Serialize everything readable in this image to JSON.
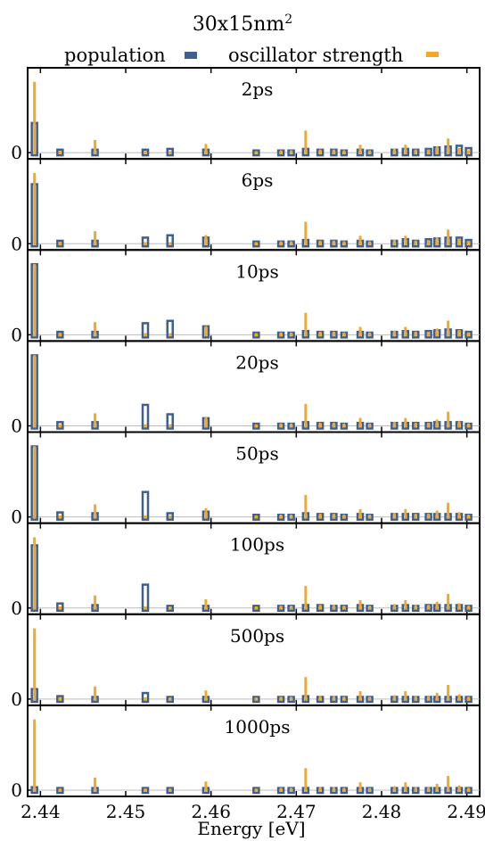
{
  "chart_data": {
    "type": "bar",
    "title": "30x15nm",
    "title_superscript": "2",
    "xlabel": "Energy [eV]",
    "xlim": [
      2.4385,
      2.4915
    ],
    "xticks": [
      {
        "value": 2.44,
        "label": "2.44"
      },
      {
        "value": 2.45,
        "label": "2.45"
      },
      {
        "value": 2.46,
        "label": "2.46"
      },
      {
        "value": 2.47,
        "label": "2.47"
      },
      {
        "value": 2.48,
        "label": "2.48"
      },
      {
        "value": 2.49,
        "label": "2.49"
      }
    ],
    "ytick_label": "0",
    "ylim": [
      0,
      1
    ],
    "legend": {
      "placement": "top",
      "entries": [
        {
          "name": "population",
          "color": "#3f5f8f"
        },
        {
          "name": "oscillator strength",
          "color": "#f7a823"
        }
      ]
    },
    "colors": {
      "population": "#3f5f8f",
      "oscillator": "#f7a823",
      "baseline": "#bbbbbb"
    },
    "energies": [
      2.4393,
      2.4423,
      2.4464,
      2.4523,
      2.4552,
      2.4594,
      2.4653,
      2.4682,
      2.4694,
      2.4711,
      2.4728,
      2.4744,
      2.4756,
      2.4775,
      2.4786,
      2.4815,
      2.4828,
      2.484,
      2.4855,
      2.4865,
      2.4878,
      2.4891,
      2.4902
    ],
    "oscillator_strength": [
      0.9,
      0.02,
      0.16,
      0.02,
      0.02,
      0.11,
      0.02,
      0.03,
      0.03,
      0.28,
      0.04,
      0.04,
      0.03,
      0.1,
      0.03,
      0.05,
      0.1,
      0.04,
      0.04,
      0.08,
      0.18,
      0.06,
      0.03
    ],
    "panels": [
      {
        "label": "2ps",
        "population": [
          0.4,
          0.06,
          0.06,
          0.06,
          0.07,
          0.06,
          0.05,
          0.05,
          0.05,
          0.07,
          0.06,
          0.06,
          0.05,
          0.06,
          0.05,
          0.06,
          0.07,
          0.06,
          0.07,
          0.09,
          0.1,
          0.11,
          0.08
        ]
      },
      {
        "label": "6ps",
        "population": [
          0.78,
          0.06,
          0.06,
          0.1,
          0.13,
          0.1,
          0.05,
          0.05,
          0.05,
          0.07,
          0.06,
          0.06,
          0.05,
          0.06,
          0.05,
          0.06,
          0.08,
          0.06,
          0.08,
          0.09,
          0.1,
          0.1,
          0.07
        ]
      },
      {
        "label": "10ps",
        "population": [
          0.92,
          0.06,
          0.06,
          0.17,
          0.2,
          0.13,
          0.05,
          0.05,
          0.05,
          0.07,
          0.06,
          0.06,
          0.05,
          0.06,
          0.05,
          0.06,
          0.07,
          0.06,
          0.07,
          0.08,
          0.09,
          0.08,
          0.06
        ]
      },
      {
        "label": "20ps",
        "population": [
          0.92,
          0.07,
          0.07,
          0.29,
          0.17,
          0.12,
          0.05,
          0.05,
          0.05,
          0.07,
          0.06,
          0.06,
          0.05,
          0.06,
          0.05,
          0.06,
          0.06,
          0.06,
          0.06,
          0.07,
          0.07,
          0.07,
          0.05
        ]
      },
      {
        "label": "50ps",
        "population": [
          0.92,
          0.08,
          0.07,
          0.34,
          0.07,
          0.09,
          0.05,
          0.05,
          0.05,
          0.07,
          0.06,
          0.06,
          0.05,
          0.06,
          0.05,
          0.06,
          0.06,
          0.06,
          0.06,
          0.06,
          0.06,
          0.06,
          0.05
        ]
      },
      {
        "label": "100ps",
        "population": [
          0.82,
          0.08,
          0.06,
          0.32,
          0.05,
          0.05,
          0.05,
          0.05,
          0.05,
          0.06,
          0.06,
          0.05,
          0.05,
          0.06,
          0.05,
          0.05,
          0.06,
          0.05,
          0.06,
          0.06,
          0.06,
          0.06,
          0.05
        ]
      },
      {
        "label": "500ps",
        "population": [
          0.15,
          0.06,
          0.05,
          0.1,
          0.05,
          0.05,
          0.05,
          0.05,
          0.05,
          0.06,
          0.05,
          0.05,
          0.05,
          0.05,
          0.05,
          0.05,
          0.05,
          0.05,
          0.05,
          0.05,
          0.05,
          0.05,
          0.05
        ]
      },
      {
        "label": "1000ps",
        "population": [
          0.06,
          0.05,
          0.05,
          0.05,
          0.05,
          0.05,
          0.05,
          0.05,
          0.05,
          0.05,
          0.05,
          0.05,
          0.05,
          0.05,
          0.05,
          0.05,
          0.05,
          0.05,
          0.05,
          0.05,
          0.05,
          0.05,
          0.05
        ]
      }
    ]
  }
}
